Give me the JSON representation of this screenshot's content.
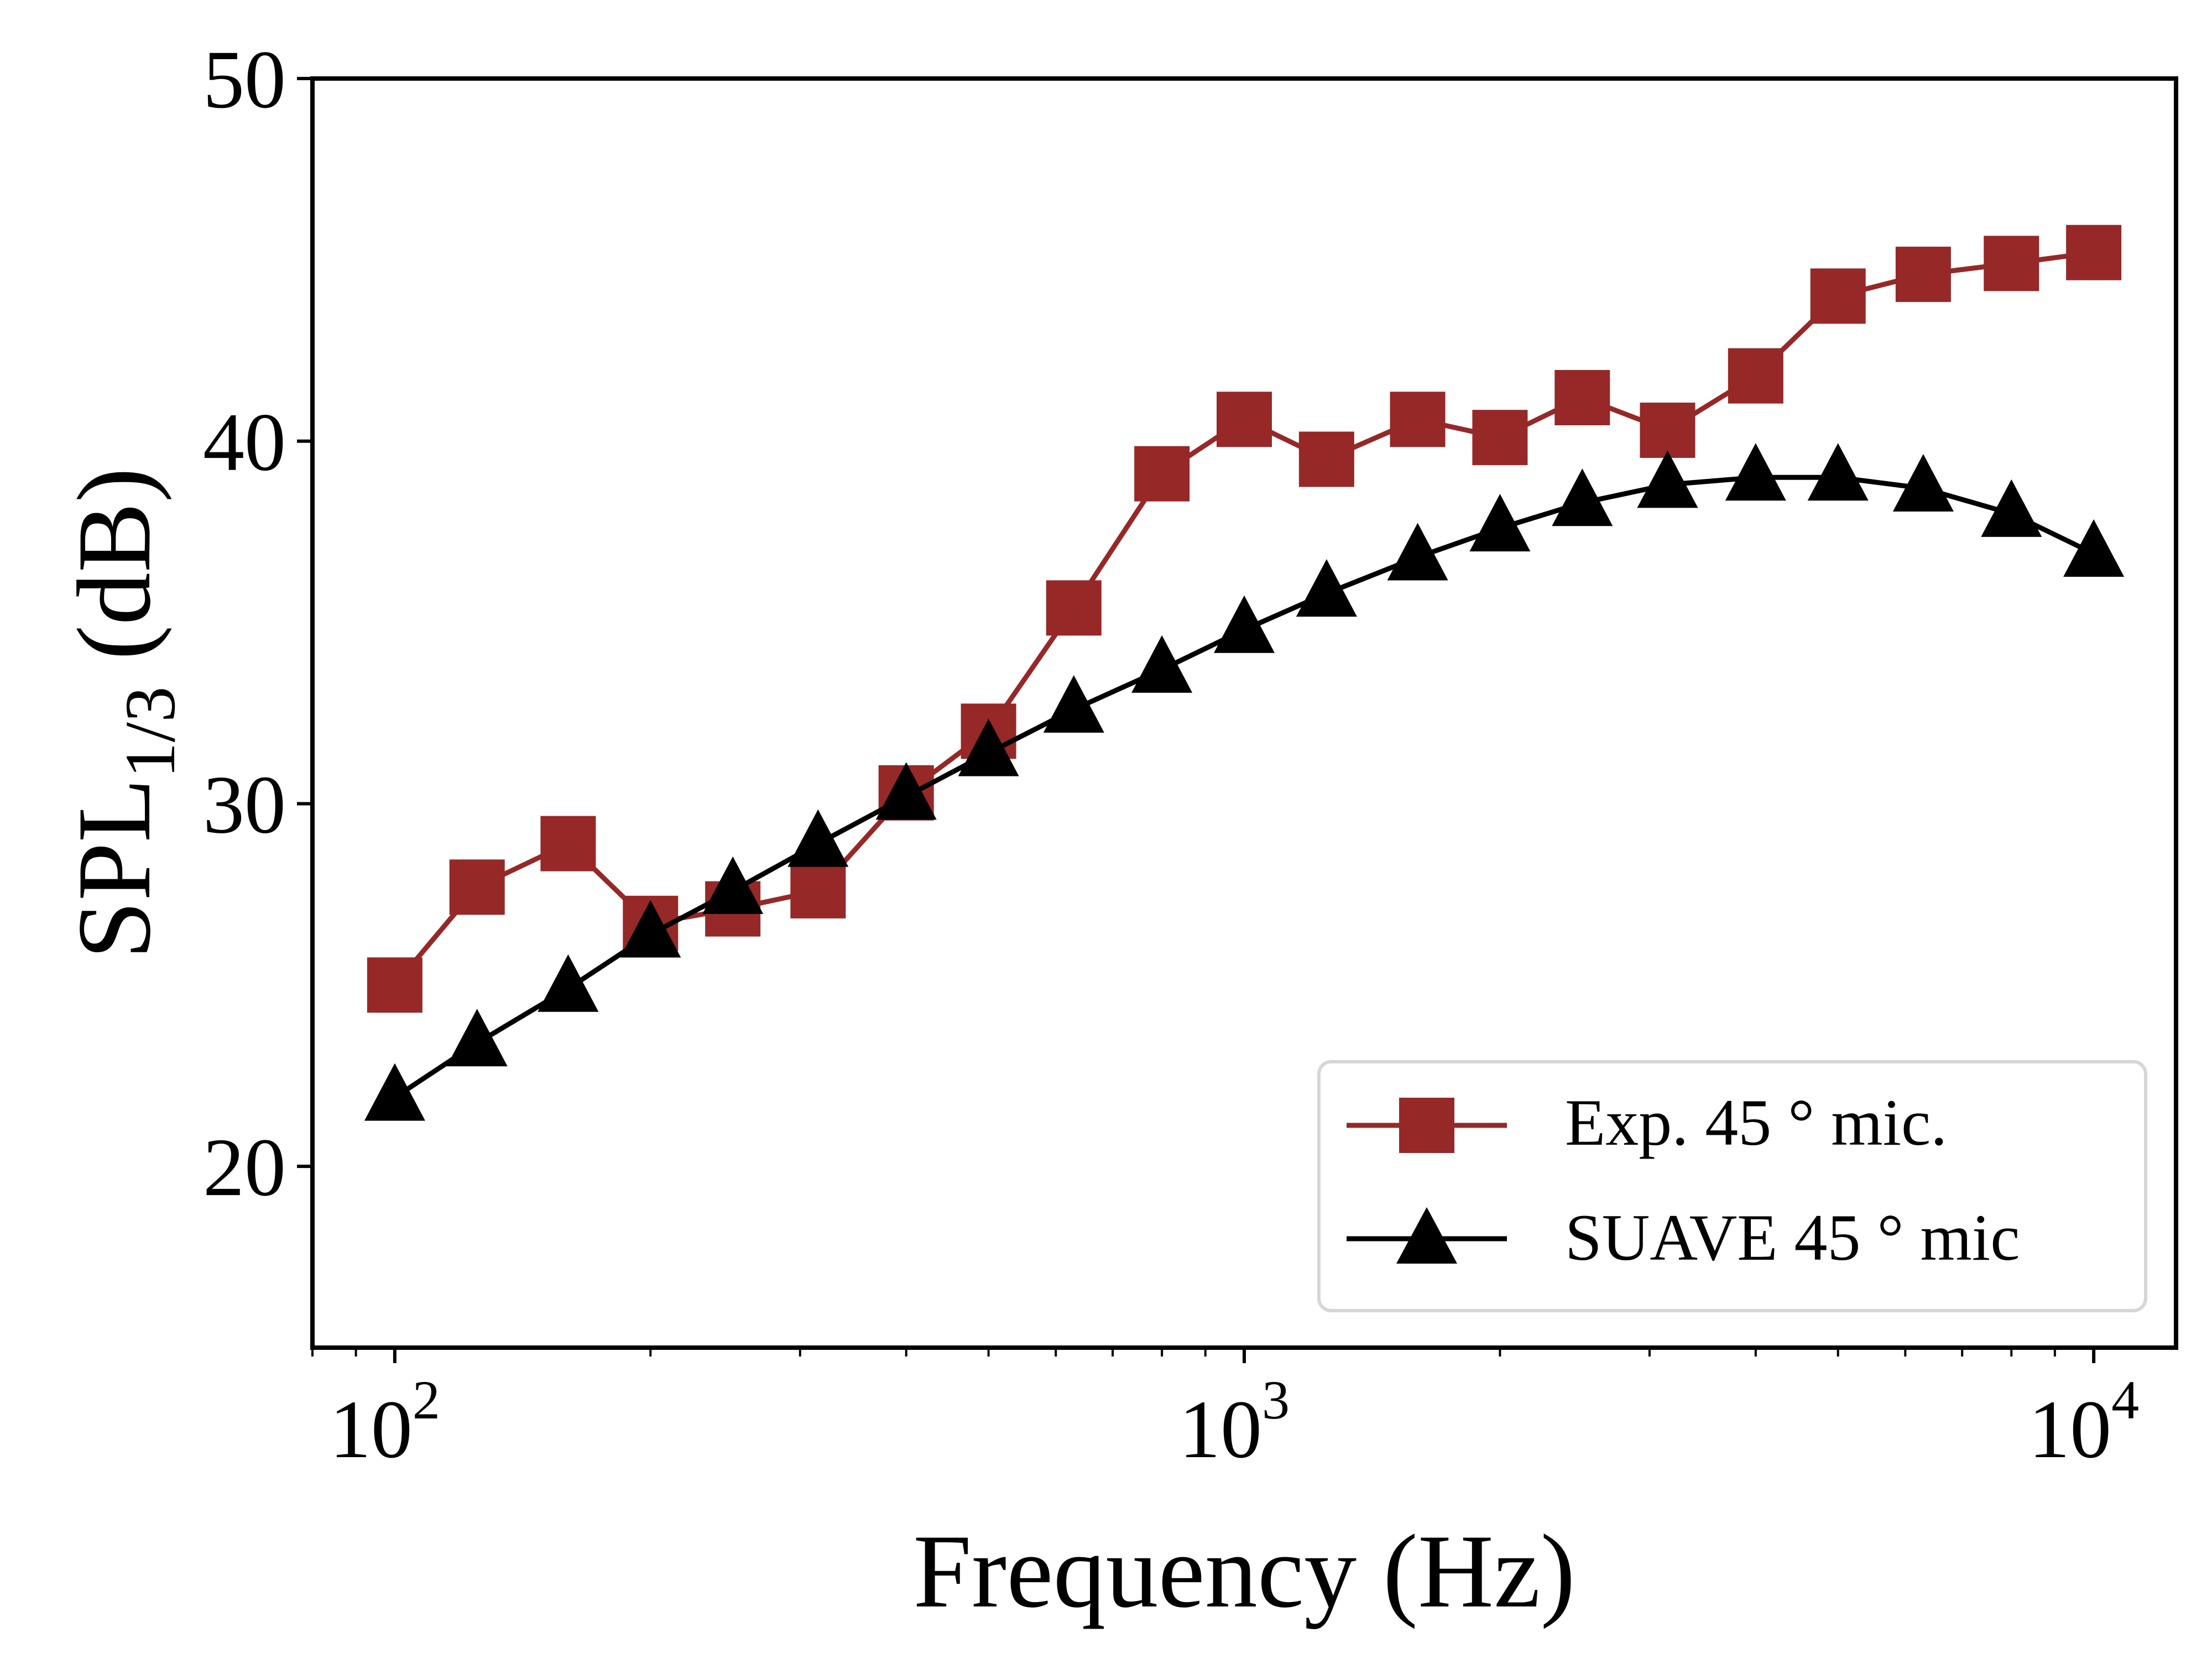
{
  "chart_data": {
    "type": "line",
    "title": "",
    "xlabel": "Frequency (Hz)",
    "ylabel": {
      "main": "SPL",
      "subscript": "1/3",
      "unit": " (dB)"
    },
    "x_scale": "log",
    "xlim": [
      80,
      12500
    ],
    "ylim": [
      15,
      50
    ],
    "x_ticks": [
      {
        "value": 100,
        "base": "10",
        "exp": "2"
      },
      {
        "value": 1000,
        "base": "10",
        "exp": "3"
      },
      {
        "value": 10000,
        "base": "10",
        "exp": "4"
      }
    ],
    "y_ticks": [
      20,
      30,
      40,
      50
    ],
    "grid": false,
    "legend_position": "lower-right",
    "x": [
      100,
      125,
      160,
      200,
      250,
      315,
      400,
      500,
      630,
      800,
      1000,
      1250,
      1600,
      2000,
      2500,
      3150,
      4000,
      5000,
      6300,
      8000,
      10000
    ],
    "series": [
      {
        "name": "Exp. 45 ° mic.",
        "color": "#962828",
        "marker": "square",
        "values": [
          25.0,
          27.7,
          28.9,
          26.7,
          27.1,
          27.6,
          30.3,
          32.0,
          35.4,
          39.1,
          40.6,
          39.5,
          40.6,
          40.1,
          41.2,
          40.3,
          41.8,
          44.0,
          44.6,
          44.9,
          45.2
        ]
      },
      {
        "name": "SUAVE 45 ° mic",
        "color": "#000000",
        "marker": "triangle",
        "values": [
          21.9,
          23.4,
          24.9,
          26.4,
          27.6,
          28.9,
          30.2,
          31.4,
          32.6,
          33.7,
          34.8,
          35.8,
          36.8,
          37.6,
          38.3,
          38.8,
          39.0,
          39.0,
          38.7,
          38.0,
          36.9
        ]
      }
    ]
  }
}
